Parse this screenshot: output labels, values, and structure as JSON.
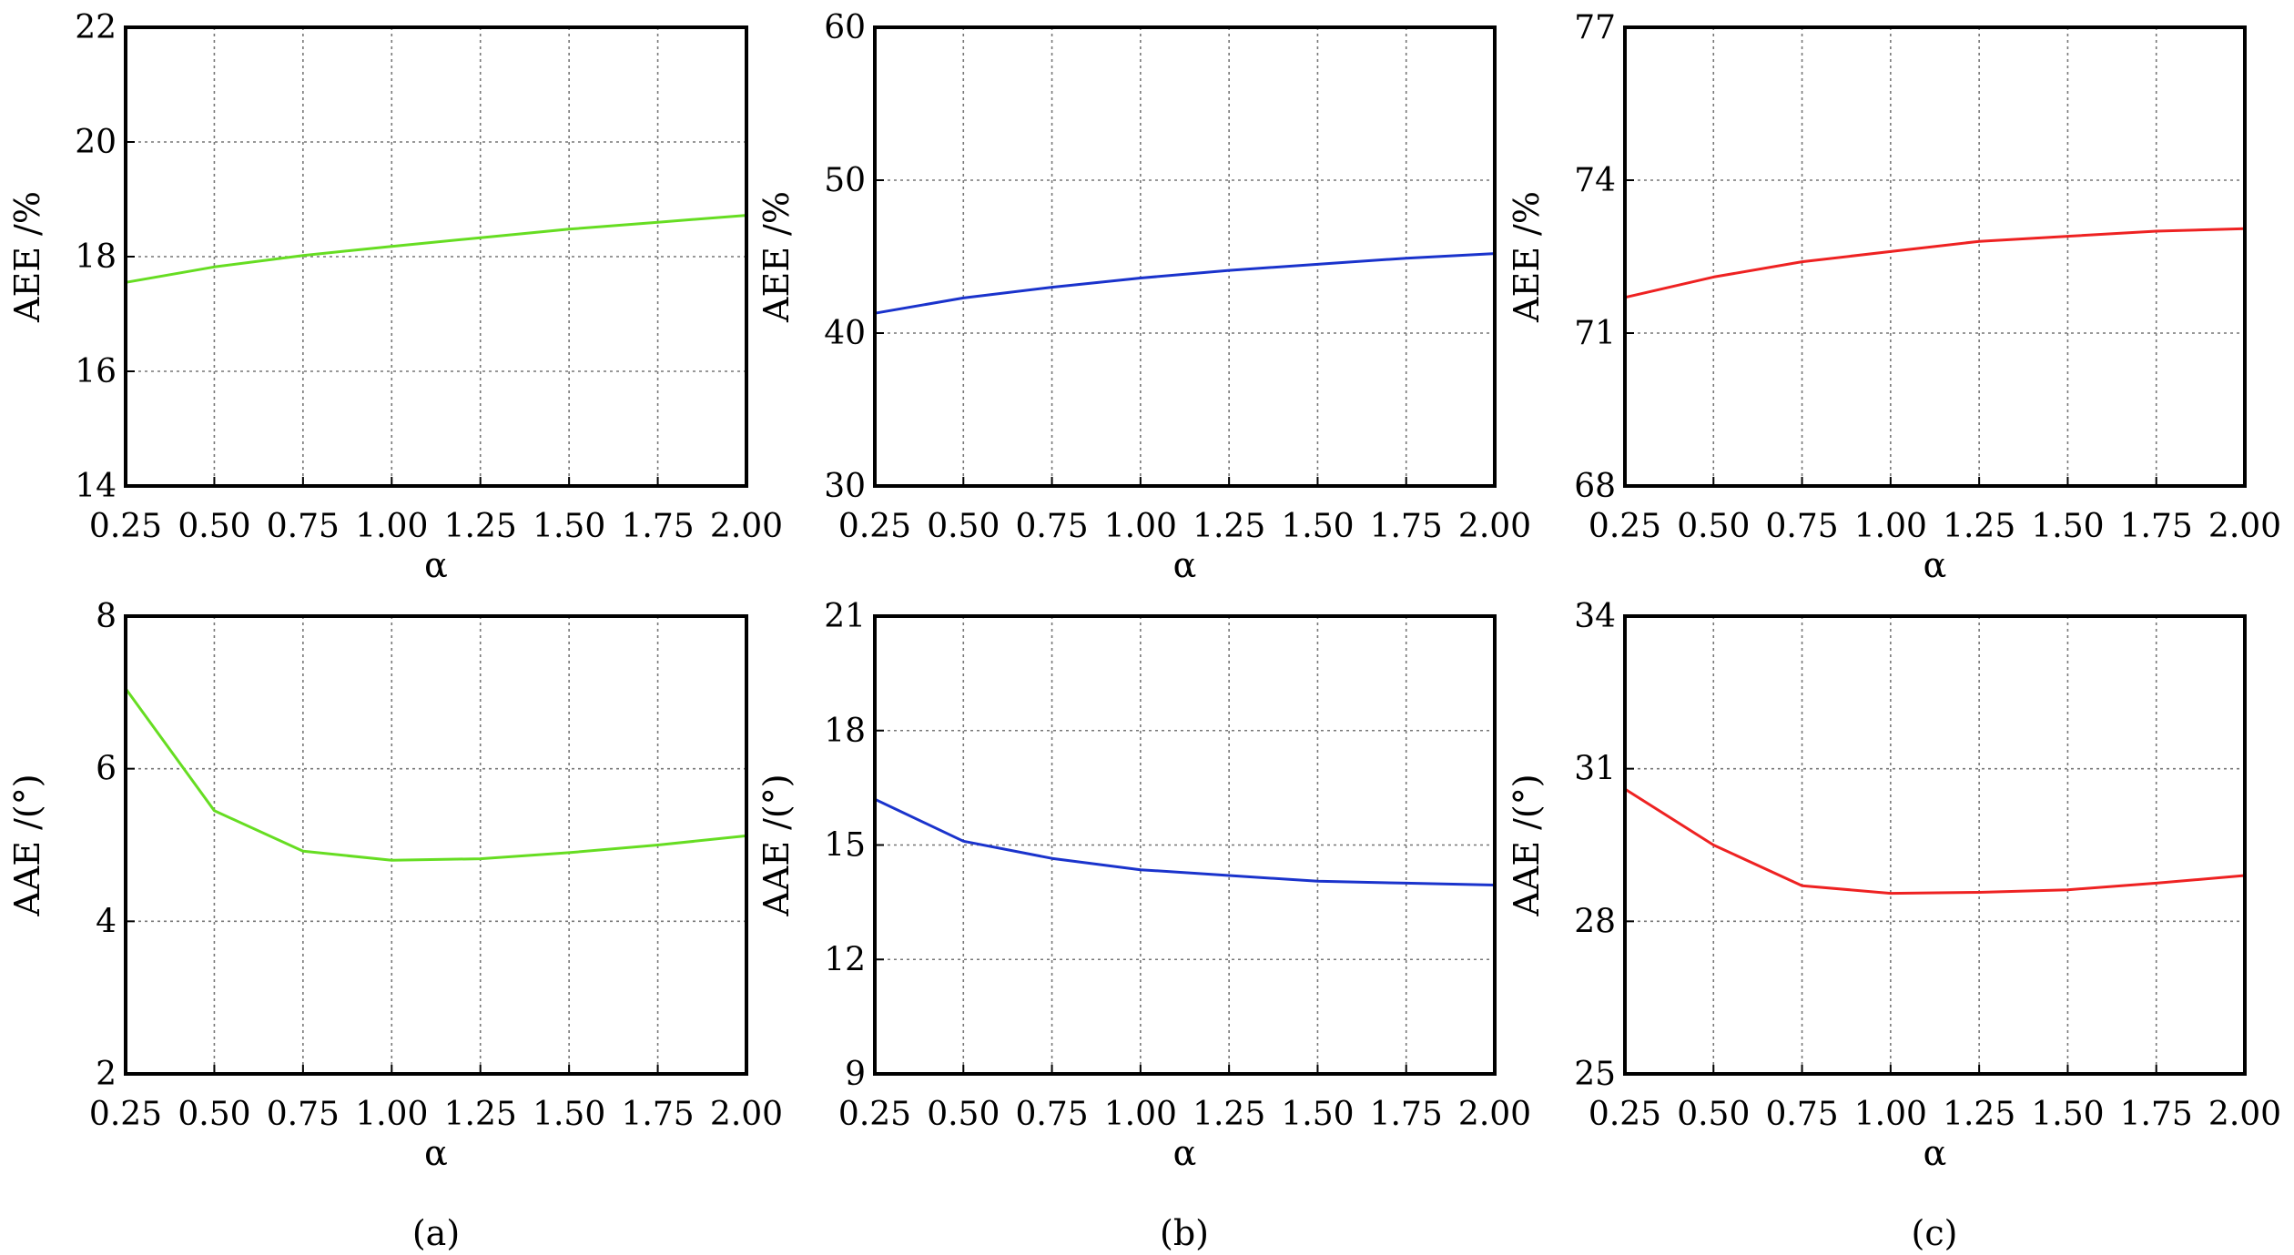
{
  "captions": [
    "(a)",
    "(b)",
    "(c)"
  ],
  "chart_data": [
    {
      "type": "line",
      "xlabel": "α",
      "ylabel": "AEE /%",
      "xlim": [
        0.25,
        2.0
      ],
      "ylim": [
        14,
        22
      ],
      "x_ticks": [
        "0.25",
        "0.50",
        "0.75",
        "1.00",
        "1.25",
        "1.50",
        "1.75",
        "2.00"
      ],
      "y_ticks": [
        "22",
        "20",
        "18",
        "16",
        "14"
      ],
      "grid": true,
      "color": "#66dd22",
      "x": [
        0.25,
        0.5,
        0.75,
        1.0,
        1.25,
        1.5,
        1.75,
        2.0
      ],
      "y": [
        17.55,
        17.82,
        18.02,
        18.18,
        18.33,
        18.48,
        18.6,
        18.72
      ]
    },
    {
      "type": "line",
      "xlabel": "α",
      "ylabel": "AEE /%",
      "xlim": [
        0.25,
        2.0
      ],
      "ylim": [
        30,
        60
      ],
      "x_ticks": [
        "0.25",
        "0.50",
        "0.75",
        "1.00",
        "1.25",
        "1.50",
        "1.75",
        "2.00"
      ],
      "y_ticks": [
        "60",
        "50",
        "40",
        "30"
      ],
      "grid": true,
      "color": "#1a33cc",
      "x": [
        0.25,
        0.5,
        0.75,
        1.0,
        1.25,
        1.5,
        1.75,
        2.0
      ],
      "y": [
        41.3,
        42.3,
        43.0,
        43.6,
        44.1,
        44.5,
        44.9,
        45.2
      ]
    },
    {
      "type": "line",
      "xlabel": "α",
      "ylabel": "AEE /%",
      "xlim": [
        0.25,
        2.0
      ],
      "ylim": [
        68,
        77
      ],
      "x_ticks": [
        "0.25",
        "0.50",
        "0.75",
        "1.00",
        "1.25",
        "1.50",
        "1.75",
        "2.00"
      ],
      "y_ticks": [
        "77",
        "74",
        "71",
        "68"
      ],
      "grid": true,
      "color": "#ee2222",
      "x": [
        0.25,
        0.5,
        0.75,
        1.0,
        1.25,
        1.5,
        1.75,
        2.0
      ],
      "y": [
        71.7,
        72.1,
        72.4,
        72.6,
        72.8,
        72.9,
        73.0,
        73.05
      ]
    },
    {
      "type": "line",
      "xlabel": "α",
      "ylabel": "AAE /(°)",
      "xlim": [
        0.25,
        2.0
      ],
      "ylim": [
        2,
        8
      ],
      "x_ticks": [
        "0.25",
        "0.50",
        "0.75",
        "1.00",
        "1.25",
        "1.50",
        "1.75",
        "2.00"
      ],
      "y_ticks": [
        "8",
        "6",
        "4",
        "2"
      ],
      "grid": true,
      "color": "#66dd22",
      "x": [
        0.25,
        0.5,
        0.75,
        1.0,
        1.25,
        1.5,
        1.75,
        2.0
      ],
      "y": [
        7.05,
        5.45,
        4.92,
        4.8,
        4.82,
        4.9,
        5.0,
        5.12
      ]
    },
    {
      "type": "line",
      "xlabel": "α",
      "ylabel": "AAE /(°)",
      "xlim": [
        0.25,
        2.0
      ],
      "ylim": [
        9,
        21
      ],
      "x_ticks": [
        "0.25",
        "0.50",
        "0.75",
        "1.00",
        "1.25",
        "1.50",
        "1.75",
        "2.00"
      ],
      "y_ticks": [
        "21",
        "18",
        "15",
        "12",
        "9"
      ],
      "grid": true,
      "color": "#1a33cc",
      "x": [
        0.25,
        0.5,
        0.75,
        1.0,
        1.25,
        1.5,
        1.75,
        2.0
      ],
      "y": [
        16.2,
        15.1,
        14.65,
        14.35,
        14.2,
        14.05,
        14.0,
        13.95
      ]
    },
    {
      "type": "line",
      "xlabel": "α",
      "ylabel": "AAE /(°)",
      "xlim": [
        0.25,
        2.0
      ],
      "ylim": [
        25,
        34
      ],
      "x_ticks": [
        "0.25",
        "0.50",
        "0.75",
        "1.00",
        "1.25",
        "1.50",
        "1.75",
        "2.00"
      ],
      "y_ticks": [
        "34",
        "31",
        "28",
        "25"
      ],
      "grid": true,
      "color": "#ee2222",
      "x": [
        0.25,
        0.5,
        0.75,
        1.0,
        1.25,
        1.5,
        1.75,
        2.0
      ],
      "y": [
        30.6,
        29.5,
        28.7,
        28.55,
        28.57,
        28.62,
        28.75,
        28.9
      ]
    }
  ]
}
